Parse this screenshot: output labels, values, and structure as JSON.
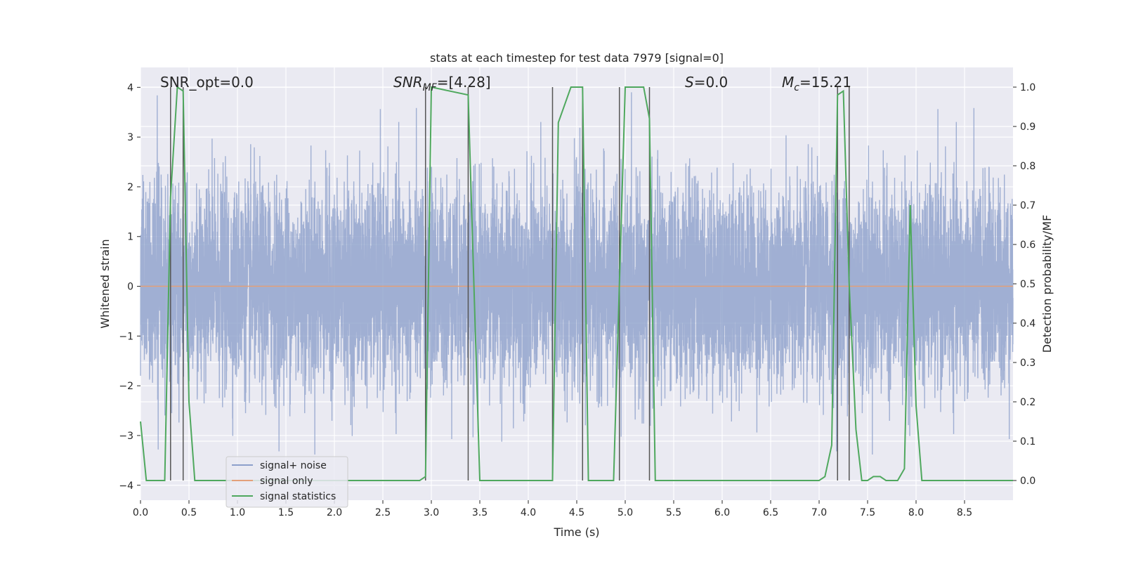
{
  "chart_data": {
    "type": "line",
    "title": "stats at each timestep for test data 7979 [signal=0]",
    "xlabel": "Time (s)",
    "ylabel": "Whitened strain",
    "y2label": "Detection probability/MF",
    "xlim": [
      0.0,
      9.0
    ],
    "ylim": [
      -4.3,
      4.4
    ],
    "y2lim": [
      -0.05,
      1.05
    ],
    "xticks": [
      0.0,
      0.5,
      1.0,
      1.5,
      2.0,
      2.5,
      3.0,
      3.5,
      4.0,
      4.5,
      5.0,
      5.5,
      6.0,
      6.5,
      7.0,
      7.5,
      8.0,
      8.5
    ],
    "xtick_labels": [
      "0.0",
      "0.5",
      "1.0",
      "1.5",
      "2.0",
      "2.5",
      "3.0",
      "3.5",
      "4.0",
      "4.5",
      "5.0",
      "5.5",
      "6.0",
      "6.5",
      "7.0",
      "7.5",
      "8.0",
      "8.5"
    ],
    "yticks": [
      -4,
      -3,
      -2,
      -1,
      0,
      1,
      2,
      3,
      4
    ],
    "ytick_labels": [
      "−4",
      "−3",
      "−2",
      "−1",
      "0",
      "1",
      "2",
      "3",
      "4"
    ],
    "y2ticks": [
      0.0,
      0.1,
      0.2,
      0.3,
      0.4,
      0.5,
      0.6,
      0.7,
      0.8,
      0.9,
      1.0
    ],
    "y2tick_labels": [
      "0.0",
      "0.1",
      "0.2",
      "0.3",
      "0.4",
      "0.5",
      "0.6",
      "0.7",
      "0.8",
      "0.9",
      "1.0"
    ],
    "grid": true,
    "legend_position": "lower-left",
    "annotations": {
      "snr_opt": "SNR_opt=0.0",
      "snr_mf_sym": "SNR",
      "snr_mf_sub": "MF",
      "snr_mf_val": "=[4.28]",
      "s_sym": "S",
      "s_val": "=0.0",
      "mc_sym": "M",
      "mc_sub": "c",
      "mc_val": "=15.21"
    },
    "series": [
      {
        "name": "signal+ noise",
        "color": "#8da0cb",
        "description_values": "whitened noise, approx. N(0,1), 8192 samples over 0–9 s",
        "sample_rate_hz": 910,
        "amplitude_sigma": 1.0
      },
      {
        "name": "signal only",
        "color": "#e3a07a",
        "values_constant": 0.0
      },
      {
        "name": "signal statistics",
        "color": "#4fa85e",
        "axis": "right",
        "x": [
          0.0,
          0.06,
          0.25,
          0.31,
          0.38,
          0.44,
          0.5,
          0.56,
          2.88,
          2.94,
          3.0,
          3.38,
          3.5,
          4.25,
          4.31,
          4.44,
          4.56,
          4.62,
          4.88,
          5.0,
          5.19,
          5.25,
          5.31,
          7.0,
          7.06,
          7.13,
          7.19,
          7.25,
          7.31,
          7.38,
          7.44,
          7.5,
          7.56,
          7.63,
          7.69,
          7.81,
          7.88,
          7.94,
          8.0,
          8.06,
          8.13,
          8.25,
          9.0
        ],
        "values": [
          0.15,
          0.0,
          0.0,
          0.72,
          1.0,
          0.99,
          0.2,
          0.0,
          0.0,
          0.01,
          1.0,
          0.98,
          0.0,
          0.0,
          0.91,
          1.0,
          1.0,
          0.0,
          0.0,
          1.0,
          1.0,
          0.92,
          0.0,
          0.0,
          0.01,
          0.09,
          0.98,
          0.99,
          0.5,
          0.13,
          0.0,
          0.0,
          0.01,
          0.01,
          0.0,
          0.0,
          0.03,
          0.7,
          0.19,
          0.0,
          0.0,
          0.0,
          0.0
        ]
      }
    ],
    "vertical_lines_x": [
      0.31,
      0.44,
      2.94,
      3.38,
      4.25,
      4.56,
      4.94,
      5.25,
      7.19,
      7.31
    ]
  }
}
